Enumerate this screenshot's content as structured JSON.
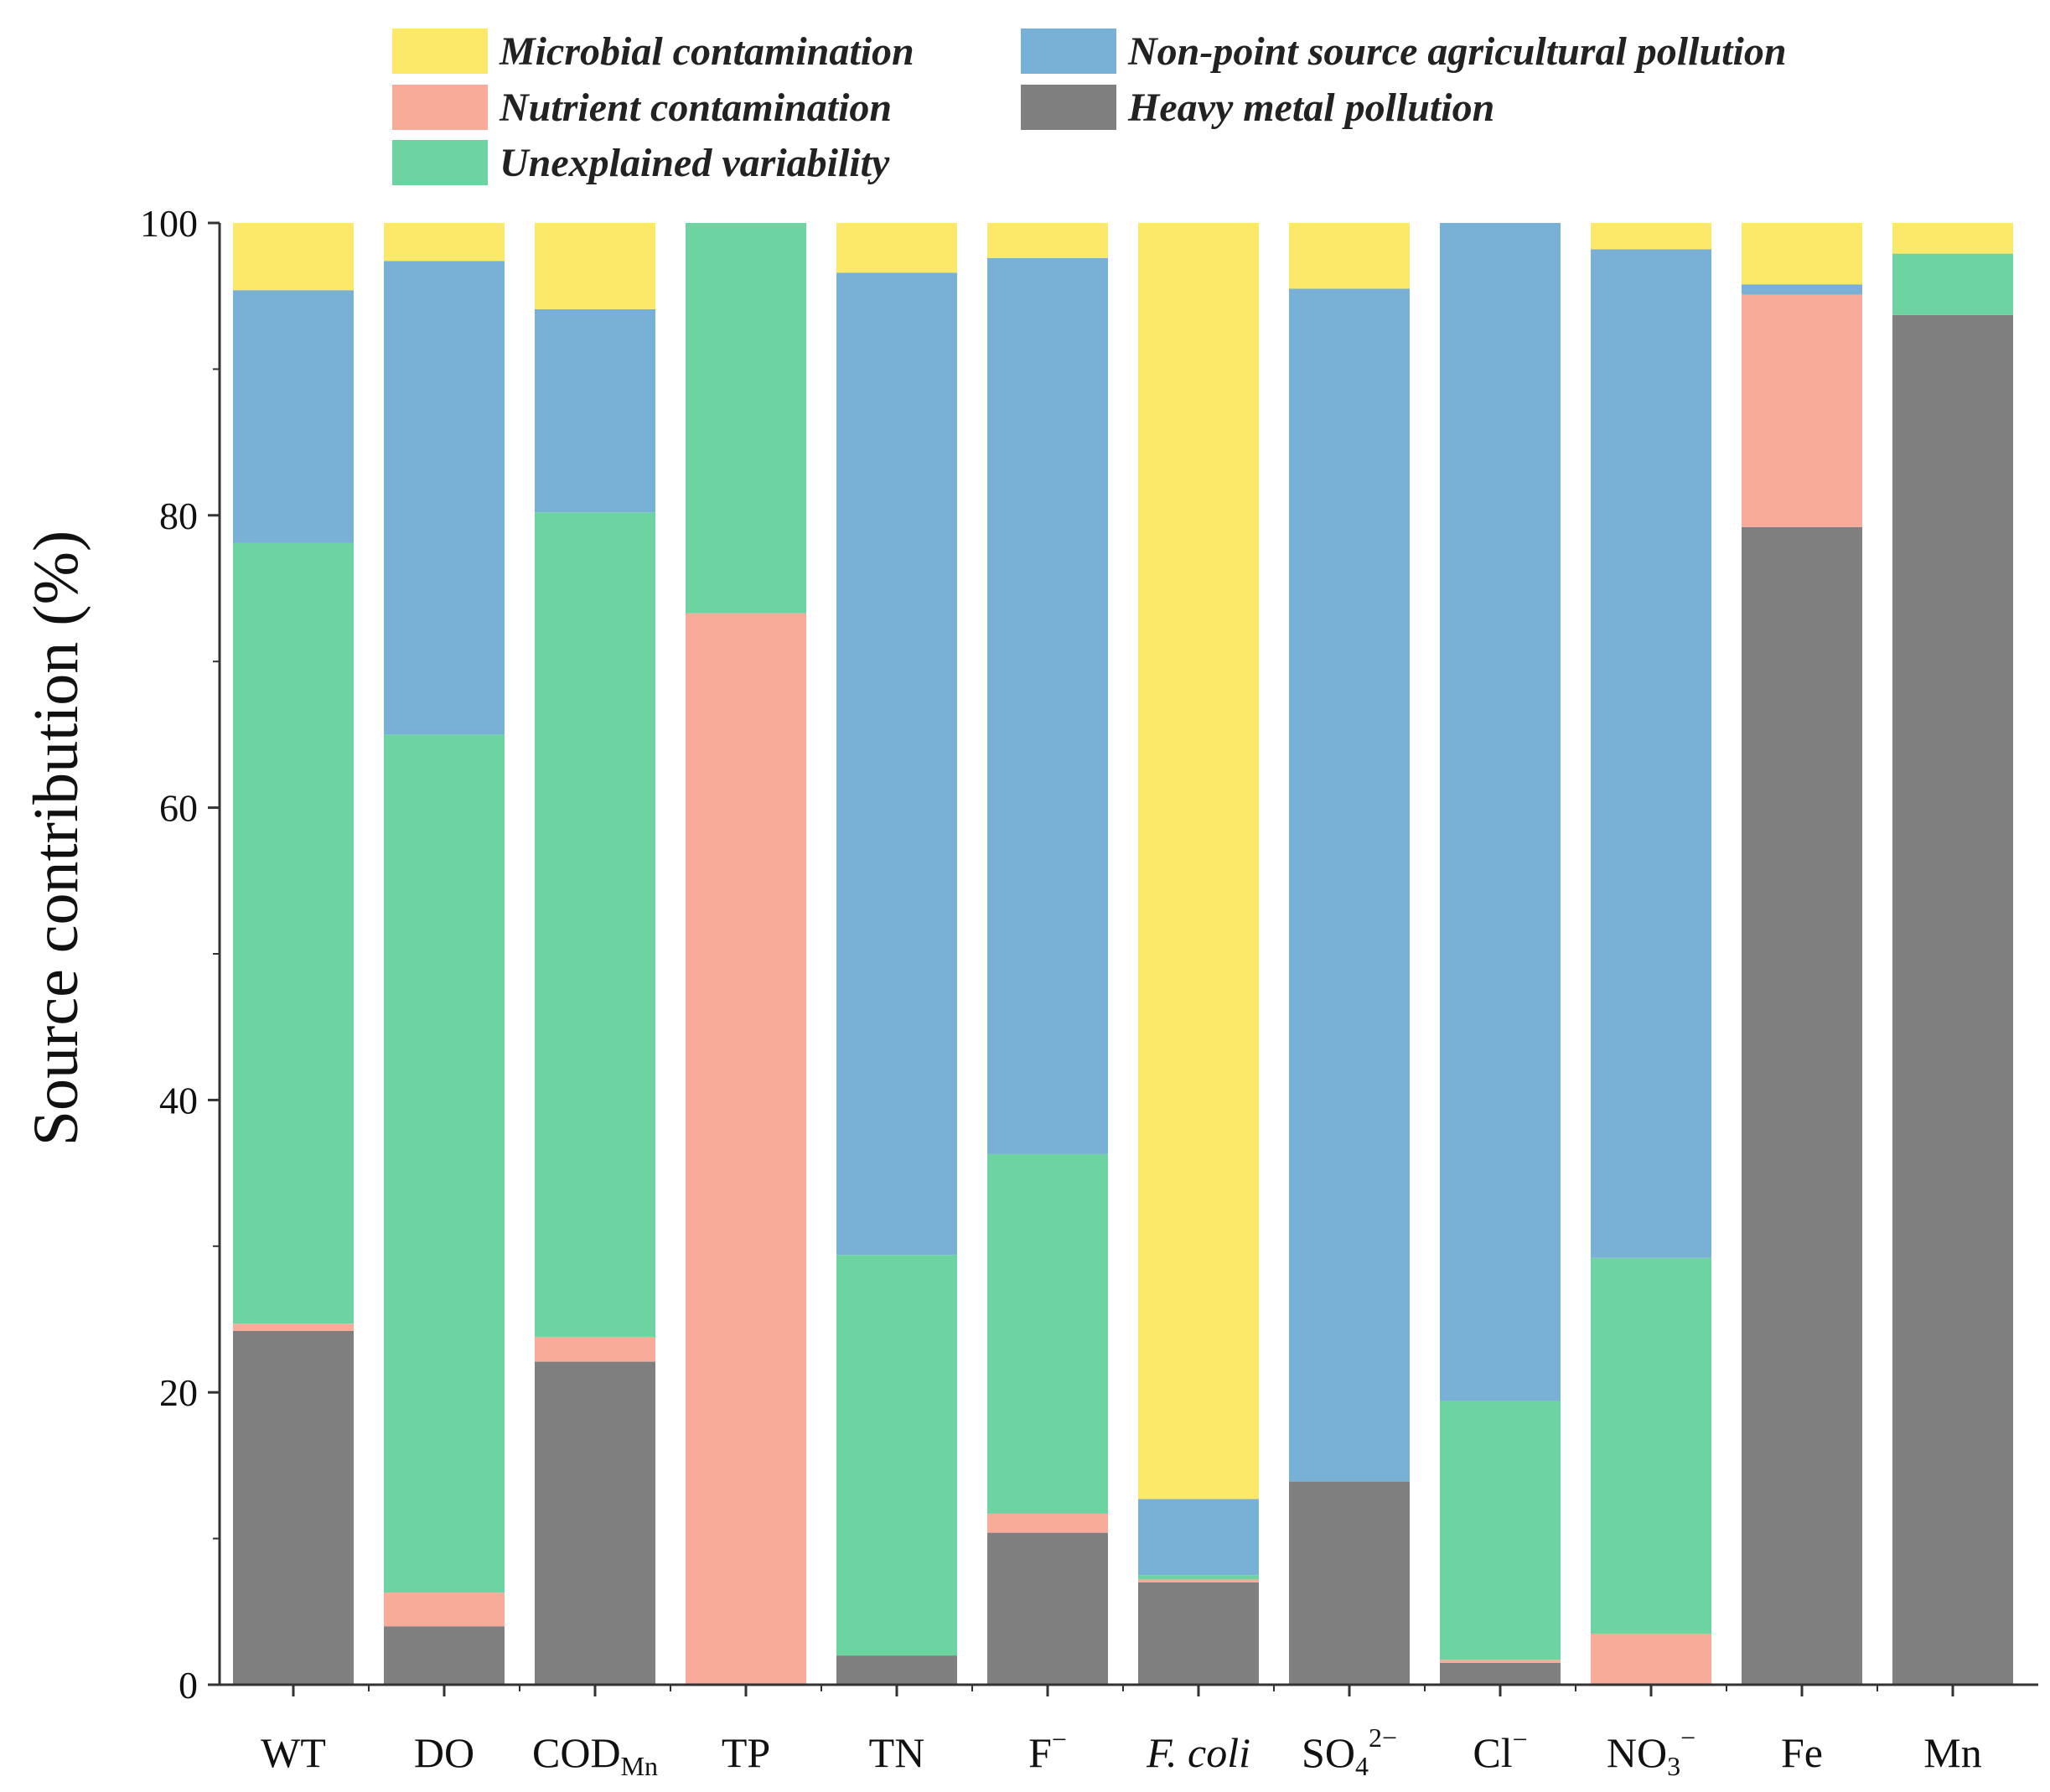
{
  "chart_data": {
    "type": "bar",
    "stacked": true,
    "ylabel": "Source contribution (%)",
    "ylim": [
      0,
      100
    ],
    "yticks": [
      0,
      20,
      40,
      60,
      80,
      100
    ],
    "grid": false,
    "legend_position": "top",
    "categories": [
      {
        "main": "WT",
        "sub": "",
        "sup": "",
        "italic": false
      },
      {
        "main": "DO",
        "sub": "",
        "sup": "",
        "italic": false
      },
      {
        "main": "COD",
        "sub": "Mn",
        "sup": "",
        "italic": false
      },
      {
        "main": "TP",
        "sub": "",
        "sup": "",
        "italic": false
      },
      {
        "main": "TN",
        "sub": "",
        "sup": "",
        "italic": false
      },
      {
        "main": "F",
        "sub": "",
        "sup": "−",
        "italic": false
      },
      {
        "main": "F. coli",
        "sub": "",
        "sup": "",
        "italic": true
      },
      {
        "main": "SO",
        "sub": "4",
        "sup": "2−",
        "italic": false
      },
      {
        "main": "Cl",
        "sub": "",
        "sup": "−",
        "italic": false
      },
      {
        "main": "NO",
        "sub": "3",
        "sup": "−",
        "italic": false
      },
      {
        "main": "Fe",
        "sub": "",
        "sup": "",
        "italic": false
      },
      {
        "main": "Mn",
        "sub": "",
        "sup": "",
        "italic": false
      }
    ],
    "series": [
      {
        "name": "Heavy metal pollution",
        "color": "#7f7f7f",
        "values": [
          24.2,
          4.0,
          22.1,
          0,
          2.0,
          10.4,
          7.0,
          13.9,
          1.5,
          0,
          79.2,
          93.7
        ]
      },
      {
        "name": "Nutrient contamination",
        "color": "#f9ab9a",
        "values": [
          0.5,
          2.3,
          1.7,
          73.3,
          0,
          1.3,
          0.2,
          0,
          0.2,
          3.5,
          15.9,
          0
        ]
      },
      {
        "name": "Unexplained variability",
        "color": "#6dd3a1",
        "values": [
          53.4,
          58.7,
          56.4,
          26.7,
          27.4,
          24.6,
          0.3,
          0,
          17.7,
          25.7,
          0,
          4.2
        ]
      },
      {
        "name": "Non-point source agricultural pollution",
        "color": "#79b0d6",
        "values": [
          17.3,
          32.4,
          13.9,
          0,
          67.2,
          61.3,
          5.2,
          81.6,
          80.6,
          69.0,
          0.7,
          0
        ]
      },
      {
        "name": "Microbial contamination",
        "color": "#fde969",
        "values": [
          4.6,
          2.6,
          5.9,
          0,
          3.4,
          2.4,
          87.3,
          4.5,
          0,
          1.8,
          4.2,
          2.1
        ]
      }
    ],
    "legend_order": [
      "Microbial contamination",
      "Non-point source agricultural pollution",
      "Nutrient contamination",
      "Heavy metal pollution",
      "Unexplained variability"
    ]
  }
}
